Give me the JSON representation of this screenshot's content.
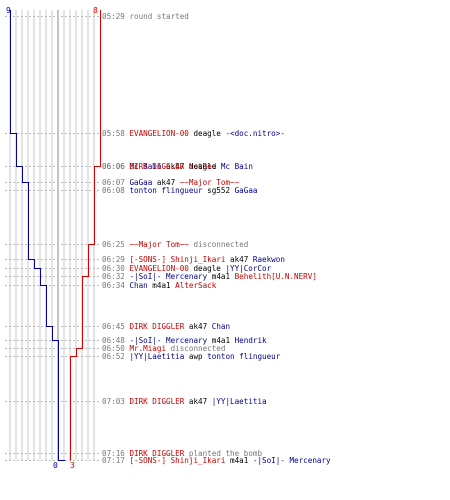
{
  "colors": {
    "ct": "#0000aa",
    "t": "#dd0000",
    "grid": "#c8c8c8",
    "gridDark": "#888888",
    "time": "#777777"
  },
  "counts": {
    "ct_start": "9",
    "t_start": "8",
    "ct_end": "0",
    "t_end": "3"
  },
  "chart_data": {
    "type": "line",
    "x_unit": "player count",
    "series": [
      {
        "team": "ct",
        "points": [
          [
            "05:29",
            9
          ],
          [
            "05:58",
            8
          ],
          [
            "06:06",
            7
          ],
          [
            "06:07",
            6
          ],
          [
            "06:25",
            6
          ],
          [
            "06:29",
            5
          ],
          [
            "06:30",
            4
          ],
          [
            "06:34",
            3
          ],
          [
            "06:45",
            2
          ],
          [
            "06:48",
            1
          ],
          [
            "07:03",
            1
          ],
          [
            "07:17",
            0
          ]
        ]
      },
      {
        "team": "t",
        "points": [
          [
            "05:29",
            8
          ],
          [
            "06:06",
            7
          ],
          [
            "06:25",
            6
          ],
          [
            "06:32",
            5
          ],
          [
            "06:50",
            4
          ],
          [
            "06:52",
            3
          ],
          [
            "07:17",
            3
          ]
        ]
      }
    ]
  },
  "events": [
    {
      "time": "05:29",
      "parts": [
        {
          "c": "sys",
          "t": "round started"
        }
      ]
    },
    {
      "time": "05:58",
      "parts": [
        {
          "c": "t",
          "t": "EVANGELION-00"
        },
        {
          "c": "wp",
          "t": " deagle "
        },
        {
          "c": "ct",
          "t": "-<doc.nitro>-"
        }
      ]
    },
    {
      "time": "06:06",
      "parts": [
        {
          "c": "ct",
          "t": "Mc Bain"
        },
        {
          "c": "wp",
          "t": " ak47 "
        },
        {
          "c": "t",
          "t": "NotRed"
        }
      ]
    },
    {
      "time": "06:06",
      "parts": [
        {
          "c": "t",
          "t": "DIRK DIGGLER"
        },
        {
          "c": "wp",
          "t": " deagle "
        },
        {
          "c": "ct",
          "t": "Mc Bain"
        }
      ]
    },
    {
      "time": "06:07",
      "parts": [
        {
          "c": "ct",
          "t": "GaGaa"
        },
        {
          "c": "wp",
          "t": " ak47 "
        },
        {
          "c": "t",
          "t": "~~Major Tom~~"
        }
      ]
    },
    {
      "time": "06:08",
      "parts": [
        {
          "c": "ct",
          "t": "tonton flingueur"
        },
        {
          "c": "wp",
          "t": " sg552 "
        },
        {
          "c": "ct",
          "t": "GaGaa"
        }
      ]
    },
    {
      "time": "06:25",
      "parts": [
        {
          "c": "t",
          "t": "~~Major Tom~~"
        },
        {
          "c": "sys",
          "t": " disconnected"
        }
      ]
    },
    {
      "time": "06:29",
      "parts": [
        {
          "c": "t",
          "t": "[-SONS-] Shinji_Ikari"
        },
        {
          "c": "wp",
          "t": " ak47 "
        },
        {
          "c": "ct",
          "t": "Raekwon"
        }
      ]
    },
    {
      "time": "06:30",
      "parts": [
        {
          "c": "t",
          "t": "EVANGELION-00"
        },
        {
          "c": "wp",
          "t": " deagle "
        },
        {
          "c": "ct",
          "t": "|YY|CorCor"
        }
      ]
    },
    {
      "time": "06:32",
      "parts": [
        {
          "c": "ct",
          "t": "-|SoI|- Mercenary"
        },
        {
          "c": "wp",
          "t": " m4a1 "
        },
        {
          "c": "t",
          "t": "Behelith[U.N.NERV]"
        }
      ]
    },
    {
      "time": "06:34",
      "parts": [
        {
          "c": "ct",
          "t": "Chan"
        },
        {
          "c": "wp",
          "t": " m4a1 "
        },
        {
          "c": "t",
          "t": "AlterSack"
        }
      ]
    },
    {
      "time": "06:45",
      "parts": [
        {
          "c": "t",
          "t": "DIRK DIGGLER"
        },
        {
          "c": "wp",
          "t": " ak47 "
        },
        {
          "c": "ct",
          "t": "Chan"
        }
      ]
    },
    {
      "time": "06:48",
      "parts": [
        {
          "c": "ct",
          "t": "-|SoI|- Mercenary"
        },
        {
          "c": "wp",
          "t": " m4a1 "
        },
        {
          "c": "ct",
          "t": "Hendrik"
        }
      ]
    },
    {
      "time": "06:50",
      "parts": [
        {
          "c": "t",
          "t": "Mr.Miagi"
        },
        {
          "c": "sys",
          "t": " disconnected"
        }
      ]
    },
    {
      "time": "06:52",
      "parts": [
        {
          "c": "ct",
          "t": "|YY|Laetitia"
        },
        {
          "c": "wp",
          "t": " awp "
        },
        {
          "c": "ct",
          "t": "tonton flingueur"
        }
      ]
    },
    {
      "time": "07:03",
      "parts": [
        {
          "c": "t",
          "t": "DIRK DIGGLER"
        },
        {
          "c": "wp",
          "t": " ak47 "
        },
        {
          "c": "ct",
          "t": "|YY|Laetitia"
        }
      ]
    },
    {
      "time": "07:16",
      "parts": [
        {
          "c": "t",
          "t": "DIRK DIGGLER"
        },
        {
          "c": "sys",
          "t": " planted the bomb"
        }
      ]
    },
    {
      "time": "07:17",
      "parts": [
        {
          "c": "t",
          "t": "[-SONS-] Shinji_Ikari"
        },
        {
          "c": "wp",
          "t": " m4a1 "
        },
        {
          "c": "ct",
          "t": "-|SoI|- Mercenary"
        }
      ]
    }
  ]
}
